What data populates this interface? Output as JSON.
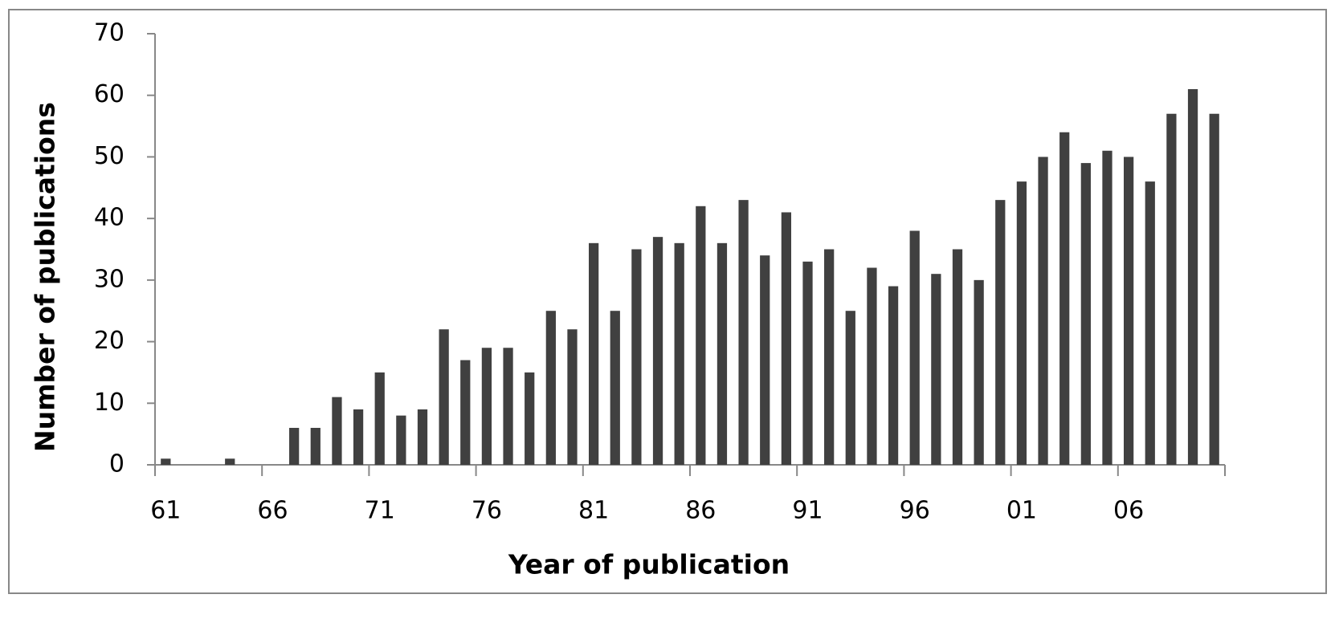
{
  "chart_data": {
    "type": "bar",
    "x_label": "Year of publication",
    "y_label": "Number of publications",
    "categories": [
      "61",
      null,
      null,
      null,
      null,
      "66",
      null,
      null,
      null,
      null,
      "71",
      null,
      null,
      null,
      null,
      "76",
      null,
      null,
      null,
      null,
      "81",
      null,
      null,
      null,
      null,
      "86",
      null,
      null,
      null,
      null,
      "91",
      null,
      null,
      null,
      null,
      "96",
      null,
      null,
      null,
      null,
      "01",
      null,
      null,
      null,
      null,
      "06",
      null,
      null,
      null,
      null
    ],
    "values": [
      1,
      0,
      0,
      1,
      0,
      0,
      6,
      6,
      11,
      9,
      15,
      8,
      9,
      22,
      17,
      19,
      19,
      15,
      25,
      22,
      36,
      25,
      35,
      37,
      36,
      42,
      36,
      43,
      34,
      41,
      33,
      35,
      25,
      32,
      29,
      38,
      31,
      35,
      30,
      43,
      46,
      50,
      54,
      49,
      51,
      50,
      46,
      57,
      61,
      57
    ],
    "color": "#404040",
    "ylim": [
      0,
      70
    ],
    "yticks": [
      0,
      10,
      20,
      30,
      40,
      50,
      60,
      70
    ],
    "grid": false
  }
}
